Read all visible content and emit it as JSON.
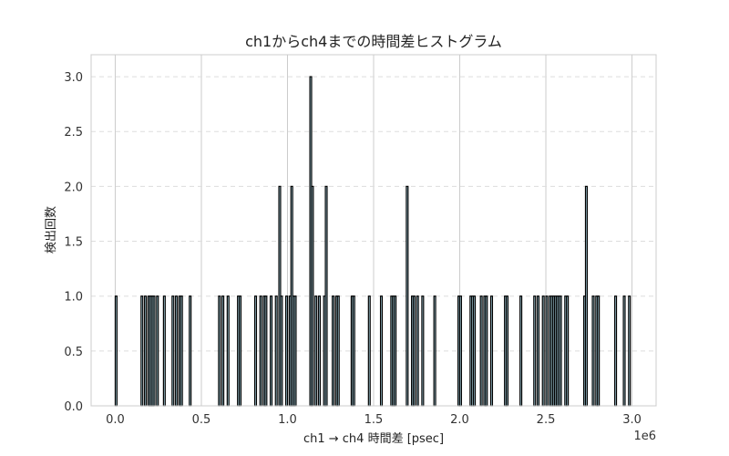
{
  "chart_data": {
    "type": "bar",
    "title": "ch1からch4までの時間差ヒストグラム",
    "xlabel": "ch1 → ch4 時間差 [psec]",
    "ylabel": "検出回数",
    "x_offset_label": "1e6",
    "xlim": [
      -0.14,
      3.14
    ],
    "ylim": [
      0,
      3.2
    ],
    "x_ticks": [
      0.0,
      0.5,
      1.0,
      1.5,
      2.0,
      2.5,
      3.0
    ],
    "x_tick_labels": [
      "0.0",
      "0.5",
      "1.0",
      "1.5",
      "2.0",
      "2.5",
      "3.0"
    ],
    "y_ticks": [
      0.0,
      0.5,
      1.0,
      1.5,
      2.0,
      2.5,
      3.0
    ],
    "y_tick_labels": [
      "0.0",
      "0.5",
      "1.0",
      "1.5",
      "2.0",
      "2.5",
      "3.0"
    ],
    "grid": true,
    "bar_color": "#add8e6",
    "edge_color": "#000000",
    "bin_width": 0.01,
    "bins_x_in_1e6_psec": [
      0.0,
      0.15,
      0.17,
      0.19,
      0.2,
      0.21,
      0.22,
      0.24,
      0.28,
      0.33,
      0.35,
      0.37,
      0.38,
      0.43,
      0.6,
      0.62,
      0.65,
      0.71,
      0.72,
      0.81,
      0.84,
      0.86,
      0.87,
      0.9,
      0.93,
      0.95,
      0.96,
      0.99,
      1.01,
      1.02,
      1.03,
      1.04,
      1.13,
      1.14,
      1.16,
      1.18,
      1.21,
      1.22,
      1.26,
      1.28,
      1.29,
      1.37,
      1.38,
      1.47,
      1.54,
      1.6,
      1.61,
      1.62,
      1.69,
      1.72,
      1.73,
      1.75,
      1.78,
      1.85,
      1.99,
      2.0,
      2.06,
      2.07,
      2.08,
      2.12,
      2.14,
      2.15,
      2.18,
      2.26,
      2.27,
      2.35,
      2.43,
      2.45,
      2.48,
      2.5,
      2.52,
      2.53,
      2.54,
      2.55,
      2.56,
      2.57,
      2.58,
      2.61,
      2.62,
      2.72,
      2.73,
      2.77,
      2.79,
      2.8,
      2.9,
      2.95,
      2.98
    ],
    "counts": [
      1,
      1,
      1,
      1,
      1,
      1,
      1,
      1,
      1,
      1,
      1,
      1,
      1,
      1,
      1,
      1,
      1,
      1,
      1,
      1,
      1,
      1,
      1,
      1,
      1,
      2,
      1,
      1,
      1,
      2,
      1,
      1,
      3,
      2,
      1,
      1,
      1,
      2,
      1,
      1,
      1,
      1,
      1,
      1,
      1,
      1,
      1,
      1,
      2,
      1,
      1,
      1,
      1,
      1,
      1,
      1,
      1,
      1,
      1,
      1,
      1,
      1,
      1,
      1,
      1,
      1,
      1,
      1,
      1,
      1,
      1,
      1,
      1,
      1,
      1,
      1,
      1,
      1,
      1,
      1,
      2,
      1,
      1,
      1,
      1,
      1,
      1
    ]
  }
}
